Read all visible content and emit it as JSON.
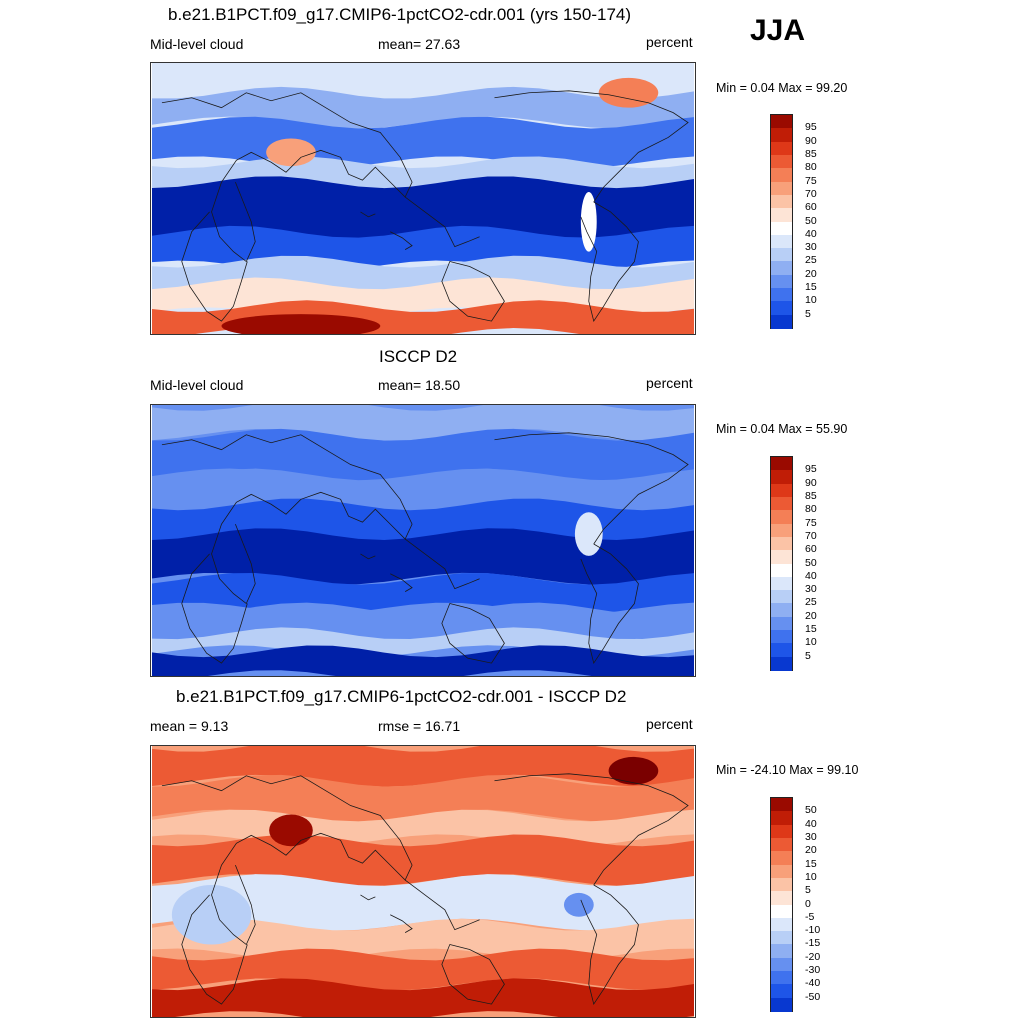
{
  "season": "JJA",
  "colors": {
    "abs_levels": [
      "#00007a",
      "#0020a8",
      "#0838d0",
      "#1e55e8",
      "#3f72ee",
      "#6690f0",
      "#8faff2",
      "#b8cff6",
      "#dbe7fa",
      "#ffffff",
      "#fde4d6",
      "#fbc3a6",
      "#f8a07a",
      "#f47f56",
      "#ec5a34",
      "#de3818",
      "#c01d06",
      "#9a0a00",
      "#7a0000"
    ],
    "diff_levels": [
      "#00007a",
      "#0020a8",
      "#0838d0",
      "#1e55e8",
      "#3f72ee",
      "#6690f0",
      "#8faff2",
      "#b8cff6",
      "#dbe7fa",
      "#ffffff",
      "#fde4d6",
      "#fbc3a6",
      "#f8a07a",
      "#f47f56",
      "#ec5a34",
      "#de3818",
      "#c01d06",
      "#9a0a00",
      "#7a0000"
    ]
  },
  "panels": [
    {
      "title": "b.e21.B1PCT.f09_g17.CMIP6-1pctCO2-cdr.001 (yrs 150-174)",
      "left_label": "Mid-level cloud",
      "center_label": "mean=  27.63",
      "right_label": "percent",
      "minmax": "Min =   0.04 Max =  99.20",
      "colorbar_ticks": [
        "95",
        "90",
        "85",
        "80",
        "75",
        "70",
        "60",
        "50",
        "40",
        "30",
        "25",
        "20",
        "15",
        "10",
        "5"
      ],
      "map_style": "model"
    },
    {
      "title": "ISCCP D2",
      "left_label": "Mid-level cloud",
      "center_label": "mean=  18.50",
      "right_label": "percent",
      "minmax": "Min =   0.04 Max =  55.90",
      "colorbar_ticks": [
        "95",
        "90",
        "85",
        "80",
        "75",
        "70",
        "60",
        "50",
        "40",
        "30",
        "25",
        "20",
        "15",
        "10",
        "5"
      ],
      "map_style": "obs"
    },
    {
      "title": "b.e21.B1PCT.f09_g17.CMIP6-1pctCO2-cdr.001 - ISCCP D2",
      "left_label": "mean =   9.13",
      "center_label": "rmse =  16.71",
      "right_label": "percent",
      "minmax": "Min = -24.10 Max =  99.10",
      "colorbar_ticks": [
        "50",
        "40",
        "30",
        "20",
        "15",
        "10",
        "5",
        "0",
        "-5",
        "-10",
        "-15",
        "-20",
        "-30",
        "-40",
        "-50"
      ],
      "map_style": "diff"
    }
  ]
}
